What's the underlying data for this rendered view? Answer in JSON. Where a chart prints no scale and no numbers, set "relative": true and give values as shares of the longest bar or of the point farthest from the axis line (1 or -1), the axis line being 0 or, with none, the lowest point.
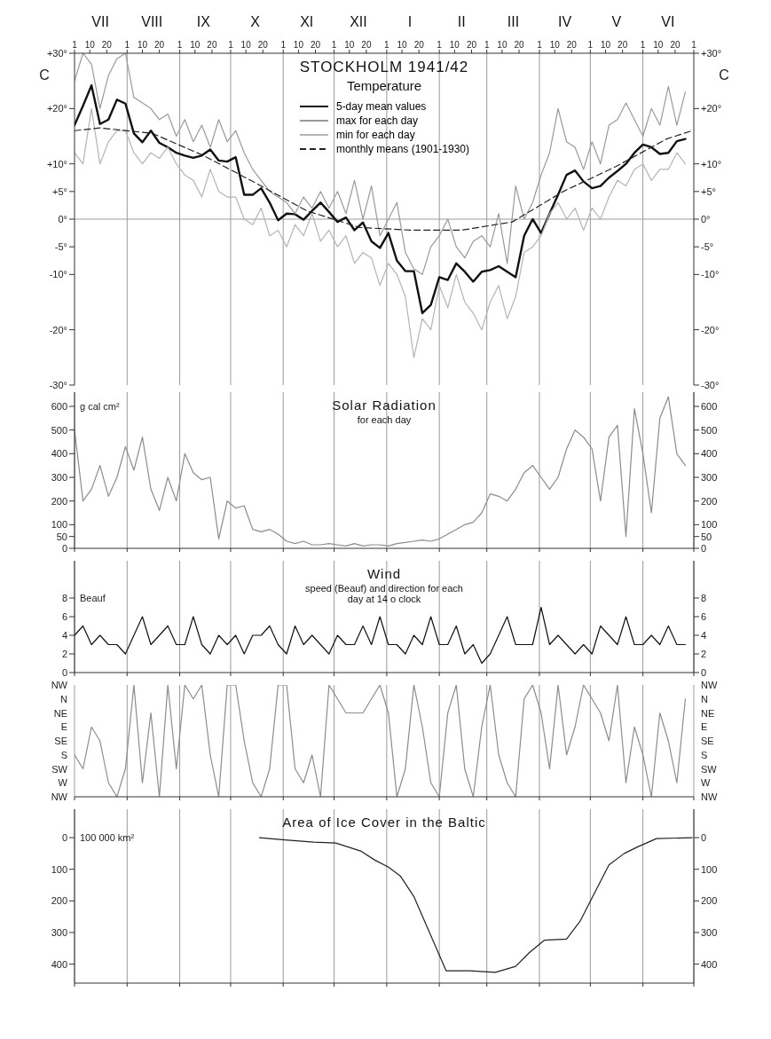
{
  "chart_data": [
    {
      "type": "line",
      "title": "STOCKHOLM 1941/42",
      "subtitle": "Temperature",
      "ylabel": "C",
      "y2label": "C",
      "legend": "top",
      "x": [
        "1941-07-01",
        "1941-07-06",
        "1941-07-11",
        "1941-07-16",
        "1941-07-21",
        "1941-07-26",
        "1941-07-31",
        "1941-08-05",
        "1941-08-10",
        "1941-08-15",
        "1941-08-20",
        "1941-08-25",
        "1941-08-30",
        "1941-09-04",
        "1941-09-09",
        "1941-09-14",
        "1941-09-19",
        "1941-09-24",
        "1941-09-29",
        "1941-10-04",
        "1941-10-09",
        "1941-10-14",
        "1941-10-19",
        "1941-10-24",
        "1941-10-29",
        "1941-11-03",
        "1941-11-08",
        "1941-11-13",
        "1941-11-18",
        "1941-11-23",
        "1941-11-28",
        "1941-12-03",
        "1941-12-08",
        "1941-12-13",
        "1941-12-18",
        "1941-12-23",
        "1941-12-28",
        "1942-01-02",
        "1942-01-07",
        "1942-01-12",
        "1942-01-17",
        "1942-01-22",
        "1942-01-27",
        "1942-02-01",
        "1942-02-06",
        "1942-02-11",
        "1942-02-16",
        "1942-02-21",
        "1942-02-26",
        "1942-03-03",
        "1942-03-08",
        "1942-03-13",
        "1942-03-18",
        "1942-03-23",
        "1942-03-28",
        "1942-04-02",
        "1942-04-07",
        "1942-04-12",
        "1942-04-17",
        "1942-04-22",
        "1942-04-27",
        "1942-05-02",
        "1942-05-07",
        "1942-05-12",
        "1942-05-17",
        "1942-05-22",
        "1942-05-27",
        "1942-06-01",
        "1942-06-06",
        "1942-06-11",
        "1942-06-16",
        "1942-06-21",
        "1942-06-26"
      ],
      "series": [
        {
          "name": "5-day mean values",
          "color": "#111111",
          "values": [
            17.0,
            20.5,
            24.2,
            17.2,
            18.0,
            21.6,
            20.9,
            15.5,
            13.9,
            16.0,
            13.8,
            13.0,
            12.0,
            11.5,
            11.1,
            11.5,
            12.6,
            10.6,
            10.4,
            11.2,
            4.4,
            4.4,
            5.6,
            3.0,
            -0.2,
            1.0,
            0.9,
            -0.1,
            1.5,
            3.0,
            1.3,
            -0.5,
            0.3,
            -2.0,
            -0.6,
            -4.0,
            -5.2,
            -2.5,
            -7.5,
            -9.4,
            -9.4,
            -17.0,
            -15.5,
            -10.5,
            -11.0,
            -8.0,
            -9.5,
            -11.3,
            -9.5,
            -9.2,
            -8.5,
            -9.5,
            -10.5,
            -3.0,
            0.0,
            -2.5,
            1.0,
            4.4,
            8.0,
            8.8,
            6.8,
            5.6,
            6.0,
            7.5,
            8.7,
            10.0,
            12.0,
            13.5,
            13.0,
            11.8,
            12.0,
            14.1,
            14.5
          ]
        },
        {
          "name": "max for each day",
          "color": "#9a9a9a",
          "values": [
            25,
            30,
            28,
            20,
            26,
            29,
            30,
            22,
            21,
            20,
            18,
            19,
            15,
            18,
            14,
            17,
            13,
            18,
            14,
            16,
            12,
            9,
            7,
            5,
            4,
            3,
            1,
            4,
            2,
            5,
            2,
            5,
            1,
            7,
            0,
            6,
            -3,
            0,
            3,
            -6,
            -9,
            -10,
            -5,
            -3,
            0,
            -5,
            -7,
            -4,
            -3,
            -5,
            1,
            -8,
            6,
            0,
            3,
            8,
            12,
            20,
            14,
            13,
            9,
            14,
            10,
            17,
            18,
            21,
            18,
            15,
            20,
            17,
            24,
            17,
            23
          ]
        },
        {
          "name": "min for each day",
          "color": "#b4b4b4",
          "values": [
            12,
            10,
            20,
            10,
            14,
            16,
            16,
            12,
            10,
            12,
            11,
            13,
            10,
            8,
            7,
            4,
            9,
            5,
            4,
            4,
            0,
            -1,
            2,
            -3,
            -2,
            -5,
            -1,
            -3,
            1,
            -4,
            -2,
            -5,
            -3,
            -8,
            -6,
            -7,
            -12,
            -8,
            -10,
            -14,
            -25,
            -18,
            -20,
            -12,
            -16,
            -10,
            -15,
            -17,
            -20,
            -15,
            -12,
            -18,
            -14,
            -6,
            -5,
            -3,
            1,
            3,
            0,
            2,
            -2,
            2,
            0,
            4,
            7,
            6,
            9,
            10,
            7,
            9,
            9,
            12,
            10
          ]
        },
        {
          "name": "monthly means (1901-1930)",
          "color": "#222222",
          "line_style": "dashed",
          "x": [
            "1941-07-01",
            "1941-07-16",
            "1941-08-16",
            "1941-09-15",
            "1941-10-16",
            "1941-11-15",
            "1941-12-16",
            "1942-01-16",
            "1942-02-14",
            "1942-03-16",
            "1942-04-15",
            "1942-05-16",
            "1942-06-15",
            "1942-06-30"
          ],
          "values": [
            16.0,
            16.5,
            15.5,
            11.5,
            6.5,
            1.5,
            -1.5,
            -2.0,
            -2.0,
            -0.5,
            5.0,
            9.5,
            14.5,
            16.0
          ]
        }
      ],
      "xlim": [
        "1941-07-01",
        "1942-07-01"
      ],
      "xticks": [
        {
          "value": "1941-07-01",
          "label": "1"
        },
        {
          "value": "1941-07-10",
          "label": "10"
        },
        {
          "value": "1941-07-20",
          "label": "20"
        },
        {
          "value": "1941-08-01",
          "label": "1"
        },
        {
          "value": "1941-08-10",
          "label": "10"
        },
        {
          "value": "1941-08-20",
          "label": "20"
        },
        {
          "value": "1941-09-01",
          "label": "1"
        },
        {
          "value": "1941-09-10",
          "label": "10"
        },
        {
          "value": "1941-09-20",
          "label": "20"
        },
        {
          "value": "1941-10-01",
          "label": "1"
        },
        {
          "value": "1941-10-10",
          "label": "10"
        },
        {
          "value": "1941-10-20",
          "label": "20"
        },
        {
          "value": "1941-11-01",
          "label": "1"
        },
        {
          "value": "1941-11-10",
          "label": "10"
        },
        {
          "value": "1941-11-20",
          "label": "20"
        },
        {
          "value": "1941-12-01",
          "label": "1"
        },
        {
          "value": "1941-12-10",
          "label": "10"
        },
        {
          "value": "1941-12-20",
          "label": "20"
        },
        {
          "value": "1942-01-01",
          "label": "1"
        },
        {
          "value": "1942-01-10",
          "label": "10"
        },
        {
          "value": "1942-01-20",
          "label": "20"
        },
        {
          "value": "1942-02-01",
          "label": "1"
        },
        {
          "value": "1942-02-10",
          "label": "10"
        },
        {
          "value": "1942-02-20",
          "label": "20"
        },
        {
          "value": "1942-03-01",
          "label": "1"
        },
        {
          "value": "1942-03-10",
          "label": "10"
        },
        {
          "value": "1942-03-20",
          "label": "20"
        },
        {
          "value": "1942-04-01",
          "label": "1"
        },
        {
          "value": "1942-04-10",
          "label": "10"
        },
        {
          "value": "1942-04-20",
          "label": "20"
        },
        {
          "value": "1942-05-01",
          "label": "1"
        },
        {
          "value": "1942-05-10",
          "label": "10"
        },
        {
          "value": "1942-05-20",
          "label": "20"
        },
        {
          "value": "1942-06-01",
          "label": "1"
        },
        {
          "value": "1942-06-10",
          "label": "10"
        },
        {
          "value": "1942-06-20",
          "label": "20"
        },
        {
          "value": "1942-07-01",
          "label": "1"
        }
      ],
      "annotations": [
        "VII",
        "VIII",
        "IX",
        "X",
        "XI",
        "XII",
        "I",
        "II",
        "III",
        "IV",
        "V",
        "VI"
      ],
      "ylim": [
        -30,
        30
      ],
      "yticks": [
        {
          "value": 30,
          "label": "+30°"
        },
        {
          "value": 20,
          "label": "+20°"
        },
        {
          "value": 10,
          "label": "+10°"
        },
        {
          "value": 5,
          "label": "+5°"
        },
        {
          "value": 0,
          "label": "0°"
        },
        {
          "value": -5,
          "label": "-5°"
        },
        {
          "value": -10,
          "label": "-10°"
        },
        {
          "value": -20,
          "label": "-20°"
        },
        {
          "value": -30,
          "label": "-30°"
        }
      ],
      "y2lim": [
        -30,
        30
      ],
      "y2ticks": [
        {
          "value": 30,
          "label": "+30°"
        },
        {
          "value": 20,
          "label": "+20°"
        },
        {
          "value": 10,
          "label": "+10°"
        },
        {
          "value": 5,
          "label": "+5°"
        },
        {
          "value": 0,
          "label": "0°"
        },
        {
          "value": -5,
          "label": "-5°"
        },
        {
          "value": -10,
          "label": "-10°"
        },
        {
          "value": -20,
          "label": "-20°"
        },
        {
          "value": -30,
          "label": "-30°"
        }
      ],
      "ref_lines": [
        {
          "axis": "y",
          "value": 0
        },
        {
          "axis": "x",
          "value": "1941-08-01"
        },
        {
          "axis": "x",
          "value": "1941-09-01"
        },
        {
          "axis": "x",
          "value": "1941-10-01"
        },
        {
          "axis": "x",
          "value": "1941-11-01"
        },
        {
          "axis": "x",
          "value": "1941-12-01"
        },
        {
          "axis": "x",
          "value": "1942-01-01"
        },
        {
          "axis": "x",
          "value": "1942-02-01"
        },
        {
          "axis": "x",
          "value": "1942-03-01"
        },
        {
          "axis": "x",
          "value": "1942-04-01"
        },
        {
          "axis": "x",
          "value": "1942-05-01"
        },
        {
          "axis": "x",
          "value": "1942-06-01"
        }
      ]
    },
    {
      "type": "line",
      "title": "Solar Radiation",
      "subtitle": "for each day",
      "ylabel": "g cal cm²",
      "tick_labels": "y",
      "grid": "x",
      "x": [
        "1941-07-01",
        "1941-07-06",
        "1941-07-11",
        "1941-07-16",
        "1941-07-21",
        "1941-07-26",
        "1941-07-31",
        "1941-08-05",
        "1941-08-10",
        "1941-08-15",
        "1941-08-20",
        "1941-08-25",
        "1941-08-30",
        "1941-09-04",
        "1941-09-09",
        "1941-09-14",
        "1941-09-19",
        "1941-09-24",
        "1941-09-29",
        "1941-10-04",
        "1941-10-09",
        "1941-10-14",
        "1941-10-19",
        "1941-10-24",
        "1941-10-29",
        "1941-11-03",
        "1941-11-08",
        "1941-11-13",
        "1941-11-18",
        "1941-11-23",
        "1941-11-28",
        "1941-12-03",
        "1941-12-08",
        "1941-12-13",
        "1941-12-18",
        "1941-12-23",
        "1941-12-28",
        "1942-01-02",
        "1942-01-07",
        "1942-01-12",
        "1942-01-17",
        "1942-01-22",
        "1942-01-27",
        "1942-02-01",
        "1942-02-06",
        "1942-02-11",
        "1942-02-16",
        "1942-02-21",
        "1942-02-26",
        "1942-03-03",
        "1942-03-08",
        "1942-03-13",
        "1942-03-18",
        "1942-03-23",
        "1942-03-28",
        "1942-04-02",
        "1942-04-07",
        "1942-04-12",
        "1942-04-17",
        "1942-04-22",
        "1942-04-27",
        "1942-05-02",
        "1942-05-07",
        "1942-05-12",
        "1942-05-17",
        "1942-05-22",
        "1942-05-27",
        "1942-06-01",
        "1942-06-06",
        "1942-06-11",
        "1942-06-16",
        "1942-06-21",
        "1942-06-26"
      ],
      "series": [
        {
          "color": "#8c8c8c",
          "values": [
            500,
            200,
            250,
            350,
            220,
            300,
            430,
            330,
            470,
            250,
            160,
            300,
            200,
            400,
            320,
            290,
            300,
            40,
            200,
            170,
            180,
            80,
            70,
            80,
            60,
            30,
            20,
            30,
            15,
            15,
            20,
            15,
            10,
            20,
            10,
            15,
            15,
            10,
            20,
            25,
            30,
            35,
            30,
            40,
            60,
            80,
            100,
            110,
            150,
            230,
            220,
            200,
            250,
            320,
            350,
            300,
            250,
            300,
            420,
            500,
            470,
            420,
            200,
            470,
            520,
            50,
            590,
            400,
            150,
            550,
            640,
            400,
            350
          ]
        }
      ],
      "xlim": [
        "1941-07-01",
        "1942-07-01"
      ],
      "xticks": [
        {
          "value": "1941-07-01",
          "label": null
        },
        {
          "value": "1941-08-01",
          "label": null
        },
        {
          "value": "1941-09-01",
          "label": null
        },
        {
          "value": "1941-10-01",
          "label": null
        },
        {
          "value": "1941-11-01",
          "label": null
        },
        {
          "value": "1941-12-01",
          "label": null
        },
        {
          "value": "1942-01-01",
          "label": null
        },
        {
          "value": "1942-02-01",
          "label": null
        },
        {
          "value": "1942-03-01",
          "label": null
        },
        {
          "value": "1942-04-01",
          "label": null
        },
        {
          "value": "1942-05-01",
          "label": null
        },
        {
          "value": "1942-06-01",
          "label": null
        },
        {
          "value": "1942-07-01",
          "label": null
        }
      ],
      "ylim": [
        0,
        660
      ],
      "yticks": [
        0,
        50,
        100,
        200,
        300,
        400,
        500,
        600
      ],
      "y2lim": [
        0,
        660
      ],
      "y2ticks": [
        0,
        50,
        100,
        200,
        300,
        400,
        500,
        600
      ]
    },
    {
      "type": "line",
      "title": "Wind",
      "subtitle": "speed (Beauf) and direction for each day at 14 o clock",
      "ylabel": "Beauf",
      "tick_labels": "y",
      "grid": "x",
      "x": [
        "1941-07-01",
        "1941-07-06",
        "1941-07-11",
        "1941-07-16",
        "1941-07-21",
        "1941-07-26",
        "1941-07-31",
        "1941-08-05",
        "1941-08-10",
        "1941-08-15",
        "1941-08-20",
        "1941-08-25",
        "1941-08-30",
        "1941-09-04",
        "1941-09-09",
        "1941-09-14",
        "1941-09-19",
        "1941-09-24",
        "1941-09-29",
        "1941-10-04",
        "1941-10-09",
        "1941-10-14",
        "1941-10-19",
        "1941-10-24",
        "1941-10-29",
        "1941-11-03",
        "1941-11-08",
        "1941-11-13",
        "1941-11-18",
        "1941-11-23",
        "1941-11-28",
        "1941-12-03",
        "1941-12-08",
        "1941-12-13",
        "1941-12-18",
        "1941-12-23",
        "1941-12-28",
        "1942-01-02",
        "1942-01-07",
        "1942-01-12",
        "1942-01-17",
        "1942-01-22",
        "1942-01-27",
        "1942-02-01",
        "1942-02-06",
        "1942-02-11",
        "1942-02-16",
        "1942-02-21",
        "1942-02-26",
        "1942-03-03",
        "1942-03-08",
        "1942-03-13",
        "1942-03-18",
        "1942-03-23",
        "1942-03-28",
        "1942-04-02",
        "1942-04-07",
        "1942-04-12",
        "1942-04-17",
        "1942-04-22",
        "1942-04-27",
        "1942-05-02",
        "1942-05-07",
        "1942-05-12",
        "1942-05-17",
        "1942-05-22",
        "1942-05-27",
        "1942-06-01",
        "1942-06-06",
        "1942-06-11",
        "1942-06-16",
        "1942-06-21",
        "1942-06-26"
      ],
      "series": [
        {
          "color": "#111111",
          "values": [
            4,
            5,
            3,
            4,
            3,
            3,
            2,
            4,
            6,
            3,
            4,
            5,
            3,
            3,
            6,
            3,
            2,
            4,
            3,
            4,
            2,
            4,
            4,
            5,
            3,
            2,
            5,
            3,
            4,
            3,
            2,
            4,
            3,
            3,
            5,
            3,
            6,
            3,
            3,
            2,
            4,
            3,
            6,
            3,
            3,
            5,
            2,
            3,
            1,
            2,
            4,
            6,
            3,
            3,
            3,
            7,
            3,
            4,
            3,
            2,
            3,
            2,
            5,
            4,
            3,
            6,
            3,
            3,
            4,
            3,
            5,
            3,
            3
          ]
        }
      ],
      "xlim": [
        "1941-07-01",
        "1942-07-01"
      ],
      "xticks": [
        {
          "value": "1941-07-01",
          "label": null
        },
        {
          "value": "1941-08-01",
          "label": null
        },
        {
          "value": "1941-09-01",
          "label": null
        },
        {
          "value": "1941-10-01",
          "label": null
        },
        {
          "value": "1941-11-01",
          "label": null
        },
        {
          "value": "1941-12-01",
          "label": null
        },
        {
          "value": "1942-01-01",
          "label": null
        },
        {
          "value": "1942-02-01",
          "label": null
        },
        {
          "value": "1942-03-01",
          "label": null
        },
        {
          "value": "1942-04-01",
          "label": null
        },
        {
          "value": "1942-05-01",
          "label": null
        },
        {
          "value": "1942-06-01",
          "label": null
        },
        {
          "value": "1942-07-01",
          "label": null
        }
      ],
      "ylim": [
        0,
        12
      ],
      "yticks": [
        0,
        2,
        4,
        6,
        8
      ],
      "y2lim": [
        0,
        12
      ],
      "y2ticks": [
        0,
        2,
        4,
        6,
        8
      ]
    },
    {
      "type": "line",
      "tick_labels": "y",
      "x": [
        "1941-07-01",
        "1941-07-06",
        "1941-07-11",
        "1941-07-16",
        "1941-07-21",
        "1941-07-26",
        "1941-07-31",
        "1941-08-05",
        "1941-08-10",
        "1941-08-15",
        "1941-08-20",
        "1941-08-25",
        "1941-08-30",
        "1941-09-04",
        "1941-09-09",
        "1941-09-14",
        "1941-09-19",
        "1941-09-24",
        "1941-09-29",
        "1941-10-04",
        "1941-10-09",
        "1941-10-14",
        "1941-10-19",
        "1941-10-24",
        "1941-10-29",
        "1941-11-03",
        "1941-11-08",
        "1941-11-13",
        "1941-11-18",
        "1941-11-23",
        "1941-11-28",
        "1941-12-03",
        "1941-12-08",
        "1941-12-13",
        "1941-12-18",
        "1941-12-23",
        "1941-12-28",
        "1942-01-02",
        "1942-01-07",
        "1942-01-12",
        "1942-01-17",
        "1942-01-22",
        "1942-01-27",
        "1942-02-01",
        "1942-02-06",
        "1942-02-11",
        "1942-02-16",
        "1942-02-21",
        "1942-02-26",
        "1942-03-03",
        "1942-03-08",
        "1942-03-13",
        "1942-03-18",
        "1942-03-23",
        "1942-03-28",
        "1942-04-02",
        "1942-04-07",
        "1942-04-12",
        "1942-04-17",
        "1942-04-22",
        "1942-04-27",
        "1942-05-02",
        "1942-05-07",
        "1942-05-12",
        "1942-05-17",
        "1942-05-22",
        "1942-05-27",
        "1942-06-01",
        "1942-06-06",
        "1942-06-11",
        "1942-06-16",
        "1942-06-21",
        "1942-06-26"
      ],
      "relative": true,
      "annotations": [
        "NW",
        "N",
        "NE",
        "E",
        "SE",
        "S",
        "SW",
        "W",
        "NW",
        "NW",
        "N",
        "NE",
        "E",
        "SE",
        "S",
        "SW",
        "W",
        "NW"
      ],
      "series": [
        {
          "color": "#8c8c8c",
          "values": [
            0.375,
            0.25,
            0.625,
            0.5,
            0.125,
            0,
            0.25,
            1,
            0.125,
            0.75,
            0,
            1,
            0.25,
            1,
            0.875,
            1,
            0.375,
            0,
            1,
            1,
            0.5,
            0.125,
            0,
            0.25,
            1,
            1,
            0.25,
            0.125,
            0.375,
            0,
            1,
            0.875,
            0.75,
            0.75,
            0.75,
            0.875,
            1,
            0.75,
            0,
            0.25,
            1,
            0.625,
            0.125,
            0,
            0.75,
            1,
            0.25,
            0,
            0.625,
            1,
            0.375,
            0.125,
            0,
            0.875,
            1,
            0.75,
            0.25,
            1,
            0.375,
            0.625,
            1,
            0.875,
            0.75,
            0.5,
            1,
            0.125,
            0.625,
            0.375,
            0,
            0.75,
            0.5,
            0.125,
            0.875
          ]
        }
      ],
      "xlim": [
        "1941-07-01",
        "1942-07-01"
      ],
      "xticks": [
        {
          "value": "1941-07-01",
          "label": null
        },
        {
          "value": "1941-08-01",
          "label": null
        },
        {
          "value": "1941-09-01",
          "label": null
        },
        {
          "value": "1941-10-01",
          "label": null
        },
        {
          "value": "1941-11-01",
          "label": null
        },
        {
          "value": "1941-12-01",
          "label": null
        },
        {
          "value": "1942-01-01",
          "label": null
        },
        {
          "value": "1942-02-01",
          "label": null
        },
        {
          "value": "1942-03-01",
          "label": null
        },
        {
          "value": "1942-04-01",
          "label": null
        },
        {
          "value": "1942-05-01",
          "label": null
        },
        {
          "value": "1942-06-01",
          "label": null
        },
        {
          "value": "1942-07-01",
          "label": null
        }
      ],
      "grid": "x"
    },
    {
      "type": "line",
      "title": "Area of Ice Cover in the Baltic",
      "ylabel": "100 000 km²",
      "tick_labels": "y",
      "grid": "x",
      "x": [
        "1941-10-18",
        "1941-11-02",
        "1941-11-19",
        "1941-12-02",
        "1941-12-17",
        "1941-12-25",
        "1942-01-02",
        "1942-01-09",
        "1942-01-17",
        "1942-02-05",
        "1942-02-19",
        "1942-03-06",
        "1942-03-18",
        "1942-03-26",
        "1942-04-04",
        "1942-04-17",
        "1942-04-25",
        "1942-05-12",
        "1942-05-21",
        "1942-05-29",
        "1942-06-09",
        "1942-06-30"
      ],
      "series": [
        {
          "color": "#222222",
          "values": [
            0,
            7,
            14,
            17,
            43,
            71,
            93,
            121,
            186,
            421,
            421,
            426,
            407,
            364,
            324,
            321,
            264,
            86,
            50,
            29,
            3,
            0
          ]
        }
      ],
      "xlim": [
        "1941-07-01",
        "1942-07-01"
      ],
      "xticks": [
        {
          "value": "1941-07-01",
          "label": null
        },
        {
          "value": "1941-08-01",
          "label": null
        },
        {
          "value": "1941-09-01",
          "label": null
        },
        {
          "value": "1941-10-01",
          "label": null
        },
        {
          "value": "1941-11-01",
          "label": null
        },
        {
          "value": "1941-12-01",
          "label": null
        },
        {
          "value": "1942-01-01",
          "label": null
        },
        {
          "value": "1942-02-01",
          "label": null
        },
        {
          "value": "1942-03-01",
          "label": null
        },
        {
          "value": "1942-04-01",
          "label": null
        },
        {
          "value": "1942-05-01",
          "label": null
        },
        {
          "value": "1942-06-01",
          "label": null
        },
        {
          "value": "1942-07-01",
          "label": null
        }
      ],
      "ylim": [
        460,
        -90
      ],
      "yticks": [
        0,
        100,
        200,
        300,
        400
      ],
      "y2lim": [
        460,
        -90
      ],
      "y2ticks": [
        0,
        100,
        200,
        300,
        400
      ]
    }
  ]
}
